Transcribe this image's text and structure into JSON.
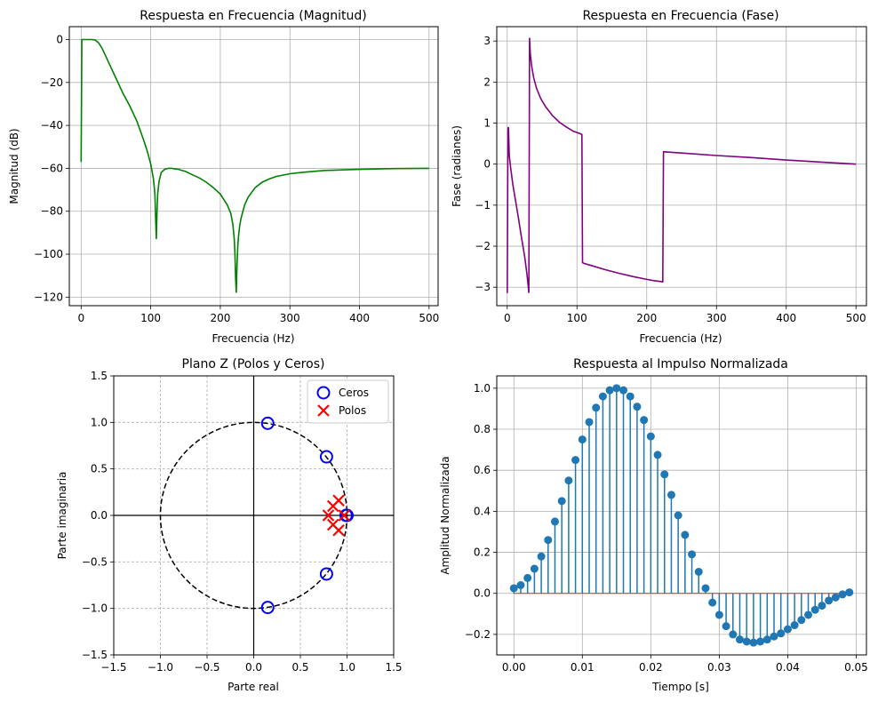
{
  "colors": {
    "magnitude_line": "#008000",
    "phase_line": "#800080",
    "zeros": "#0000ff",
    "poles": "#ff0000",
    "impulse": "#1f77b4",
    "grid": "#b0b0b0"
  },
  "chart_data": [
    {
      "type": "line",
      "title": "Respuesta en Frecuencia (Magnitud)",
      "xlabel": "Frecuencia (Hz)",
      "ylabel": "Magnitud (dB)",
      "xlim": [
        -17,
        513
      ],
      "ylim": [
        -124,
        6
      ],
      "xticks": [
        0,
        100,
        200,
        300,
        400,
        500
      ],
      "yticks": [
        0,
        -20,
        -40,
        -60,
        -80,
        -100,
        -120
      ],
      "grid": true,
      "series": [
        {
          "x": [
            0,
            1,
            3,
            8,
            15,
            20,
            25,
            30,
            35,
            40,
            50,
            60,
            70,
            80,
            90,
            95,
            100,
            104,
            106,
            107,
            108,
            109,
            110,
            112,
            115,
            120,
            125,
            130,
            140,
            150,
            160,
            170,
            180,
            190,
            200,
            210,
            215,
            218,
            220,
            221,
            222,
            223,
            224,
            225,
            226,
            228,
            230,
            235,
            240,
            250,
            260,
            270,
            280,
            300,
            320,
            350,
            400,
            450,
            500
          ],
          "y": [
            -57,
            0,
            0,
            0,
            0,
            -0.2,
            -1.5,
            -4,
            -7.5,
            -11,
            -18,
            -25,
            -31,
            -38,
            -47,
            -52,
            -58,
            -65,
            -72,
            -83,
            -93,
            -80,
            -72,
            -66,
            -62,
            -60.5,
            -60,
            -60,
            -60.5,
            -61.5,
            -63,
            -64.5,
            -66.5,
            -69,
            -72,
            -77,
            -81,
            -86,
            -93,
            -100,
            -111,
            -118,
            -105,
            -97,
            -92,
            -86.5,
            -83,
            -77,
            -73.5,
            -69,
            -66.5,
            -65,
            -63.8,
            -62.5,
            -61.8,
            -61,
            -60.5,
            -60.1,
            -60
          ]
        }
      ]
    },
    {
      "type": "line",
      "title": "Respuesta en Frecuencia (Fase)",
      "xlabel": "Frecuencia (Hz)",
      "ylabel": "Fase (radianes)",
      "xlim": [
        -15,
        515
      ],
      "ylim": [
        -3.45,
        3.35
      ],
      "xticks": [
        0,
        100,
        200,
        300,
        400,
        500
      ],
      "yticks": [
        3,
        2,
        1,
        0,
        -1,
        -2,
        -3
      ],
      "grid": true,
      "series": [
        {
          "x": [
            0,
            1,
            1.5,
            2,
            2.5,
            3,
            5,
            8,
            12,
            16,
            20,
            25,
            28,
            30,
            31,
            32,
            33,
            35,
            38,
            42,
            48,
            55,
            65,
            75,
            85,
            95,
            100,
            105,
            107,
            108,
            110,
            120,
            140,
            160,
            180,
            200,
            210,
            220,
            223,
            224,
            225,
            250,
            300,
            350,
            400,
            450,
            500
          ],
          "y": [
            -3.14,
            0.88,
            0.9,
            0.8,
            0.5,
            0.2,
            -0.1,
            -0.5,
            -0.9,
            -1.3,
            -1.75,
            -2.25,
            -2.65,
            -2.95,
            -3.14,
            3.08,
            2.7,
            2.4,
            2.1,
            1.85,
            1.6,
            1.4,
            1.18,
            1.02,
            0.9,
            0.8,
            0.77,
            0.74,
            0.72,
            -2.4,
            -2.42,
            -2.47,
            -2.57,
            -2.66,
            -2.74,
            -2.81,
            -2.84,
            -2.86,
            -2.87,
            0.3,
            0.3,
            0.27,
            0.21,
            0.16,
            0.1,
            0.05,
            0.0
          ]
        }
      ]
    },
    {
      "type": "scatter",
      "title": "Plano Z (Polos y Ceros)",
      "xlabel": "Parte real",
      "ylabel": "Parte imaginaria",
      "xlim": [
        -1.5,
        1.5
      ],
      "ylim": [
        -1.5,
        1.5
      ],
      "xticks": [
        -1.5,
        -1.0,
        -0.5,
        0.0,
        0.5,
        1.0,
        1.5
      ],
      "yticks": [
        1.5,
        1.0,
        0.5,
        0.0,
        -0.5,
        -1.0,
        -1.5
      ],
      "grid": true,
      "legend_position": "top-right",
      "series": [
        {
          "name": "Ceros",
          "marker": "circle",
          "points": [
            [
              0.15,
              0.99
            ],
            [
              0.15,
              -0.99
            ],
            [
              0.78,
              0.63
            ],
            [
              0.78,
              -0.63
            ],
            [
              1.0,
              0.0
            ],
            [
              0.99,
              0.0
            ]
          ]
        },
        {
          "name": "Polos",
          "marker": "x",
          "points": [
            [
              0.85,
              0.1
            ],
            [
              0.85,
              -0.1
            ],
            [
              0.91,
              0.16
            ],
            [
              0.91,
              -0.16
            ],
            [
              0.8,
              0.0
            ],
            [
              0.97,
              0.0
            ]
          ]
        }
      ]
    },
    {
      "type": "stem",
      "title": "Respuesta al Impulso Normalizada",
      "xlabel": "Tiempo [s]",
      "ylabel": "Amplitud Normalizada",
      "xlim": [
        -0.0025,
        0.0515
      ],
      "ylim": [
        -0.3,
        1.06
      ],
      "xticks": [
        0.0,
        0.01,
        0.02,
        0.03,
        0.04,
        0.05
      ],
      "yticks": [
        1.0,
        0.8,
        0.6,
        0.4,
        0.2,
        0.0,
        -0.2
      ],
      "grid": true,
      "x_start": 0.0,
      "x_step": 0.001,
      "values": [
        0.025,
        0.04,
        0.075,
        0.12,
        0.18,
        0.26,
        0.35,
        0.45,
        0.55,
        0.65,
        0.75,
        0.835,
        0.905,
        0.96,
        0.99,
        1.0,
        0.99,
        0.96,
        0.91,
        0.845,
        0.765,
        0.675,
        0.58,
        0.48,
        0.38,
        0.285,
        0.19,
        0.105,
        0.025,
        -0.045,
        -0.105,
        -0.16,
        -0.2,
        -0.225,
        -0.235,
        -0.24,
        -0.235,
        -0.225,
        -0.21,
        -0.195,
        -0.175,
        -0.155,
        -0.13,
        -0.105,
        -0.08,
        -0.06,
        -0.035,
        -0.02,
        -0.005,
        0.005
      ]
    }
  ]
}
